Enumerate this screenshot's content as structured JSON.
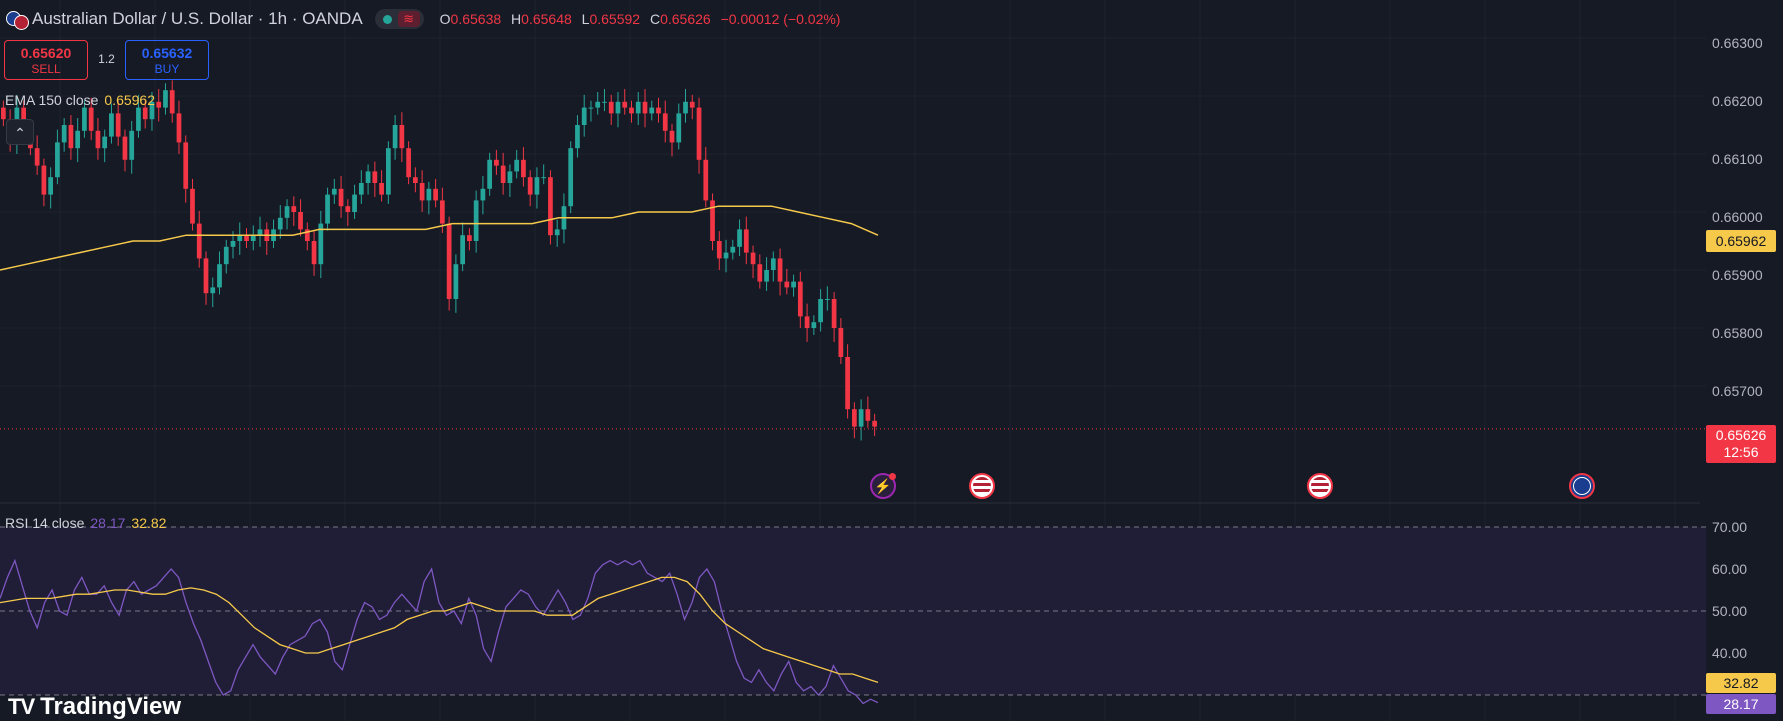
{
  "header": {
    "title": "Australian Dollar / U.S. Dollar · 1h · OANDA",
    "flag_icon": "aud-usd-flags-icon",
    "market_status": "open",
    "ohlc": {
      "o_label": "O",
      "o_value": "0.65638",
      "h_label": "H",
      "h_value": "0.65648",
      "l_label": "L",
      "l_value": "0.65592",
      "c_label": "C",
      "c_value": "0.65626",
      "change": "−0.00012 (−0.02%)"
    }
  },
  "trade": {
    "sell_price": "0.65620",
    "sell_label": "SELL",
    "spread": "1.2",
    "buy_price": "0.65632",
    "buy_label": "BUY"
  },
  "indicators": {
    "ema_label": "EMA 150 close",
    "ema_value": "0.65962",
    "rsi_label": "RSI 14 close",
    "rsi_value": "28.17",
    "rsi_ma_value": "32.82"
  },
  "price_axis": {
    "labels": [
      "0.66300",
      "0.66200",
      "0.66100",
      "0.66000",
      "0.65900",
      "0.65800",
      "0.65700"
    ],
    "ema_tag": "0.65962",
    "last_price_tag": "0.65626",
    "countdown": "12:56"
  },
  "rsi_axis": {
    "labels": [
      "70.00",
      "60.00",
      "50.00",
      "40.00"
    ],
    "rsi_ma_tag": "32.82",
    "rsi_tag": "28.17"
  },
  "events": [
    {
      "type": "flash",
      "icon": "lightning-icon"
    },
    {
      "type": "us",
      "icon": "us-flag-icon"
    },
    {
      "type": "us",
      "icon": "us-flag-icon"
    },
    {
      "type": "au",
      "icon": "au-flag-icon"
    }
  ],
  "branding": {
    "logo_mark": "TV",
    "logo_text": "TradingView"
  },
  "colors": {
    "background": "#161a25",
    "up": "#26a69a",
    "down": "#f23645",
    "ema": "#f7c94b",
    "rsi": "#7e57c2",
    "rsi_ma": "#f7c94b"
  },
  "chart_data": [
    {
      "type": "candlestick",
      "title": "Australian Dollar / U.S. Dollar · 1h · OANDA",
      "y_range": [
        0.6557,
        0.6634
      ],
      "last_close": 0.65626,
      "closes": [
        0.6616,
        0.6612,
        0.6618,
        0.6614,
        0.6611,
        0.6608,
        0.6603,
        0.6606,
        0.6612,
        0.6615,
        0.6611,
        0.6614,
        0.6618,
        0.6614,
        0.6611,
        0.6613,
        0.6617,
        0.6613,
        0.6609,
        0.6614,
        0.6618,
        0.6616,
        0.6619,
        0.6618,
        0.6621,
        0.6617,
        0.6612,
        0.6604,
        0.6598,
        0.6592,
        0.6586,
        0.6587,
        0.6591,
        0.6594,
        0.6595,
        0.6596,
        0.6595,
        0.6596,
        0.6597,
        0.6595,
        0.6597,
        0.6599,
        0.6601,
        0.66,
        0.6597,
        0.6595,
        0.6591,
        0.6598,
        0.6603,
        0.6604,
        0.6601,
        0.66,
        0.6603,
        0.6605,
        0.6607,
        0.6605,
        0.6603,
        0.6611,
        0.6615,
        0.6611,
        0.6606,
        0.6605,
        0.6602,
        0.6604,
        0.6602,
        0.6598,
        0.6585,
        0.6591,
        0.6596,
        0.6595,
        0.6602,
        0.6604,
        0.6609,
        0.6608,
        0.6605,
        0.6607,
        0.6609,
        0.6606,
        0.6603,
        0.6606,
        0.6606,
        0.6596,
        0.6597,
        0.6601,
        0.6611,
        0.6615,
        0.6618,
        0.6618,
        0.6619,
        0.6619,
        0.6617,
        0.6619,
        0.6618,
        0.6617,
        0.6619,
        0.6617,
        0.6618,
        0.6617,
        0.6614,
        0.6612,
        0.6617,
        0.6619,
        0.6618,
        0.6609,
        0.6602,
        0.6595,
        0.6592,
        0.6593,
        0.6594,
        0.6597,
        0.6593,
        0.6591,
        0.6588,
        0.659,
        0.6592,
        0.6588,
        0.6587,
        0.6588,
        0.6582,
        0.658,
        0.6581,
        0.6585,
        0.6585,
        0.658,
        0.6575,
        0.6566,
        0.6563,
        0.6566,
        0.6564,
        0.6563
      ],
      "ema_150": [
        0.659,
        0.6591,
        0.6592,
        0.6593,
        0.6594,
        0.6595,
        0.6595,
        0.6596,
        0.6596,
        0.6596,
        0.6596,
        0.6596,
        0.6597,
        0.6597,
        0.6597,
        0.6597,
        0.6597,
        0.6598,
        0.6598,
        0.6598,
        0.6598,
        0.6599,
        0.6599,
        0.6599,
        0.66,
        0.66,
        0.66,
        0.6601,
        0.6601,
        0.6601,
        0.66,
        0.6599,
        0.6598,
        0.6596
      ],
      "series": [
        {
          "name": "EMA 150 close",
          "last": 0.65962
        }
      ]
    },
    {
      "type": "line",
      "title": "RSI 14 close",
      "y_range": [
        27,
        73
      ],
      "reference_lines": [
        70,
        50,
        30
      ],
      "series": [
        {
          "name": "RSI 14 close",
          "last": 28.17,
          "values": [
            53,
            58,
            62,
            56,
            50,
            46,
            52,
            55,
            50,
            49,
            55,
            58,
            54,
            54,
            56,
            52,
            49,
            55,
            57,
            54,
            55,
            56,
            58,
            60,
            58,
            52,
            47,
            43,
            38,
            33,
            30,
            31,
            36,
            39,
            42,
            39,
            37,
            35,
            39,
            42,
            43,
            44,
            47,
            48,
            45,
            38,
            36,
            42,
            48,
            52,
            51,
            48,
            49,
            52,
            54,
            52,
            50,
            57,
            60,
            52,
            49,
            50,
            47,
            53,
            49,
            41,
            38,
            45,
            51,
            53,
            55,
            54,
            51,
            49,
            52,
            55,
            52,
            48,
            49,
            53,
            59,
            61,
            62,
            61,
            62,
            61,
            62,
            59,
            58,
            57,
            59,
            54,
            48,
            52,
            58,
            60,
            57,
            50,
            44,
            38,
            34,
            33,
            36,
            33,
            31,
            35,
            38,
            33,
            31,
            32,
            30,
            32,
            37,
            34,
            31,
            30,
            28,
            29,
            28.17
          ]
        },
        {
          "name": "RSI MA",
          "last": 32.82,
          "values": [
            52,
            52.5,
            53,
            53,
            53,
            53.5,
            54,
            54,
            54.5,
            55,
            55,
            54.5,
            54,
            54,
            55,
            55.5,
            55,
            54,
            52,
            49,
            46,
            44,
            42,
            41,
            40,
            40,
            41,
            42,
            43,
            44,
            45,
            46,
            48,
            49,
            50,
            50,
            51,
            52,
            51,
            50,
            50,
            50,
            50,
            49,
            49,
            49,
            51,
            53,
            54,
            55,
            56,
            57,
            58,
            58,
            57,
            54,
            50,
            47,
            45,
            43,
            41,
            40,
            39,
            38,
            37,
            36,
            35,
            35,
            34,
            33
          ]
        }
      ]
    }
  ]
}
